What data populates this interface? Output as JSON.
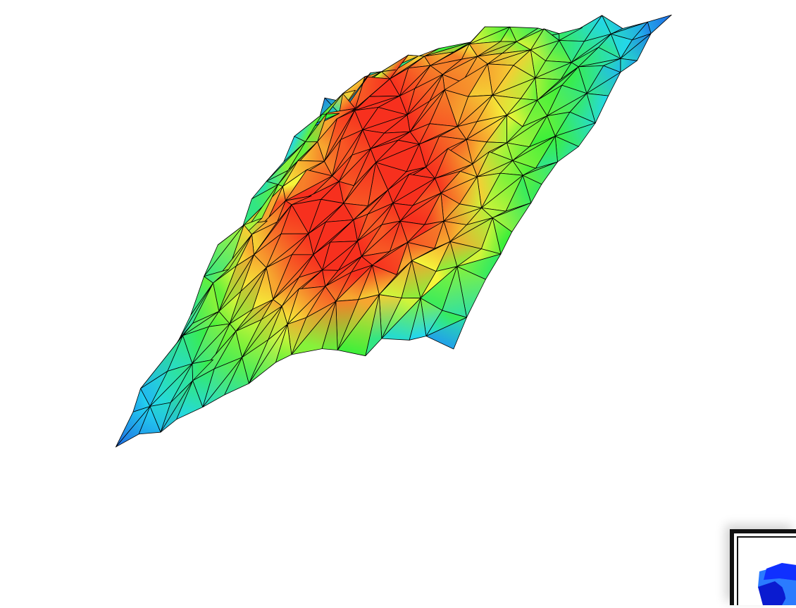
{
  "scene": {
    "kind": "3d-surface-mesh",
    "colormap": [
      "#1f4fe0",
      "#22d6f0",
      "#3cf03a",
      "#f5f53a",
      "#f7301e"
    ],
    "mesh": {
      "rows": 15,
      "cols": 16,
      "edge_color": "#000000",
      "heights": [
        [
          0.1,
          0.2,
          0.3,
          0.4,
          0.45,
          0.5,
          0.55,
          0.55,
          0.5,
          0.45,
          0.4,
          0.35,
          0.25,
          0.2,
          0.15,
          0.05
        ],
        [
          0.15,
          0.35,
          0.55,
          0.7,
          0.8,
          0.85,
          0.8,
          0.75,
          0.7,
          0.6,
          0.55,
          0.45,
          0.35,
          0.3,
          0.25,
          0.1
        ],
        [
          0.25,
          0.5,
          0.8,
          0.95,
          1.0,
          0.95,
          0.9,
          0.9,
          0.85,
          0.8,
          0.7,
          0.6,
          0.45,
          0.4,
          0.3,
          0.15
        ],
        [
          0.3,
          0.55,
          0.85,
          1.0,
          1.0,
          1.0,
          0.95,
          0.9,
          0.9,
          0.85,
          0.8,
          0.65,
          0.5,
          0.45,
          0.35,
          0.2
        ],
        [
          0.35,
          0.6,
          0.85,
          0.95,
          1.0,
          1.0,
          1.0,
          0.95,
          0.9,
          0.85,
          0.8,
          0.7,
          0.55,
          0.5,
          0.4,
          0.25
        ],
        [
          0.4,
          0.55,
          0.8,
          0.9,
          0.95,
          1.0,
          1.0,
          1.0,
          0.95,
          0.9,
          0.85,
          0.75,
          0.6,
          0.55,
          0.45,
          0.3
        ],
        [
          0.4,
          0.6,
          0.75,
          0.9,
          0.95,
          0.95,
          1.0,
          1.0,
          1.0,
          0.95,
          0.9,
          0.8,
          0.65,
          0.55,
          0.5,
          0.35
        ],
        [
          0.45,
          0.65,
          0.85,
          0.95,
          1.0,
          1.0,
          0.95,
          1.0,
          1.0,
          1.0,
          0.95,
          0.85,
          0.7,
          0.6,
          0.5,
          0.4
        ],
        [
          0.4,
          0.6,
          0.8,
          0.9,
          1.0,
          1.0,
          1.0,
          0.95,
          1.0,
          1.0,
          1.0,
          0.9,
          0.8,
          0.65,
          0.55,
          0.45
        ],
        [
          0.35,
          0.55,
          0.75,
          0.85,
          0.95,
          1.0,
          1.0,
          1.0,
          0.95,
          1.0,
          1.0,
          0.95,
          0.85,
          0.7,
          0.6,
          0.45
        ],
        [
          0.3,
          0.45,
          0.6,
          0.75,
          0.85,
          0.95,
          1.0,
          1.0,
          1.0,
          0.95,
          1.0,
          1.0,
          0.9,
          0.8,
          0.65,
          0.5
        ],
        [
          0.25,
          0.4,
          0.5,
          0.6,
          0.75,
          0.85,
          0.95,
          1.0,
          1.0,
          1.0,
          0.95,
          0.95,
          0.9,
          0.85,
          0.7,
          0.55
        ],
        [
          0.2,
          0.3,
          0.4,
          0.5,
          0.6,
          0.7,
          0.8,
          0.9,
          0.95,
          1.0,
          1.0,
          0.95,
          0.85,
          0.75,
          0.6,
          0.45
        ],
        [
          0.15,
          0.25,
          0.3,
          0.4,
          0.45,
          0.55,
          0.65,
          0.75,
          0.85,
          0.9,
          0.85,
          0.8,
          0.7,
          0.6,
          0.45,
          0.35
        ],
        [
          0.05,
          0.15,
          0.2,
          0.25,
          0.3,
          0.35,
          0.45,
          0.55,
          0.65,
          0.6,
          0.55,
          0.5,
          0.4,
          0.3,
          0.25,
          0.15
        ]
      ]
    },
    "inset": {
      "kind": "axis-orientation-widget",
      "colors": [
        "#1030ff",
        "#2a7bff",
        "#0a1bd0"
      ]
    }
  }
}
